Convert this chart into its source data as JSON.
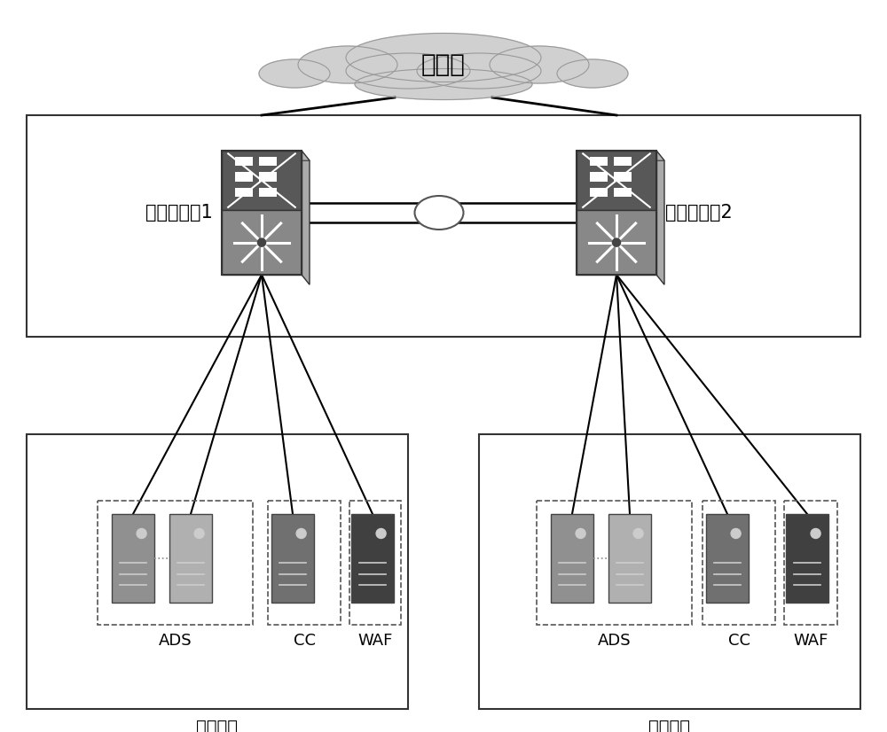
{
  "bg_color": "#ffffff",
  "cloud_text": "运营商",
  "router_label1": "路由器设备1",
  "router_label2": "路由器设备2",
  "protection_label": "防护设备",
  "ads_label": "ADS",
  "cc_label": "CC",
  "waf_label": "WAF",
  "font_size_cloud": 20,
  "font_size_router": 15,
  "font_size_device": 13,
  "font_size_prot": 14,
  "cloud_fill": "#d0d0d0",
  "cloud_edge": "#999999",
  "router_top_fill": "#555555",
  "router_bot_fill": "#888888",
  "router_edge": "#333333",
  "server_ads1_fill": "#909090",
  "server_ads2_fill": "#b0b0b0",
  "server_cc_fill": "#707070",
  "server_waf_fill": "#404040",
  "line_color": "#000000",
  "dashed_color": "#555555",
  "box_color": "#333333"
}
